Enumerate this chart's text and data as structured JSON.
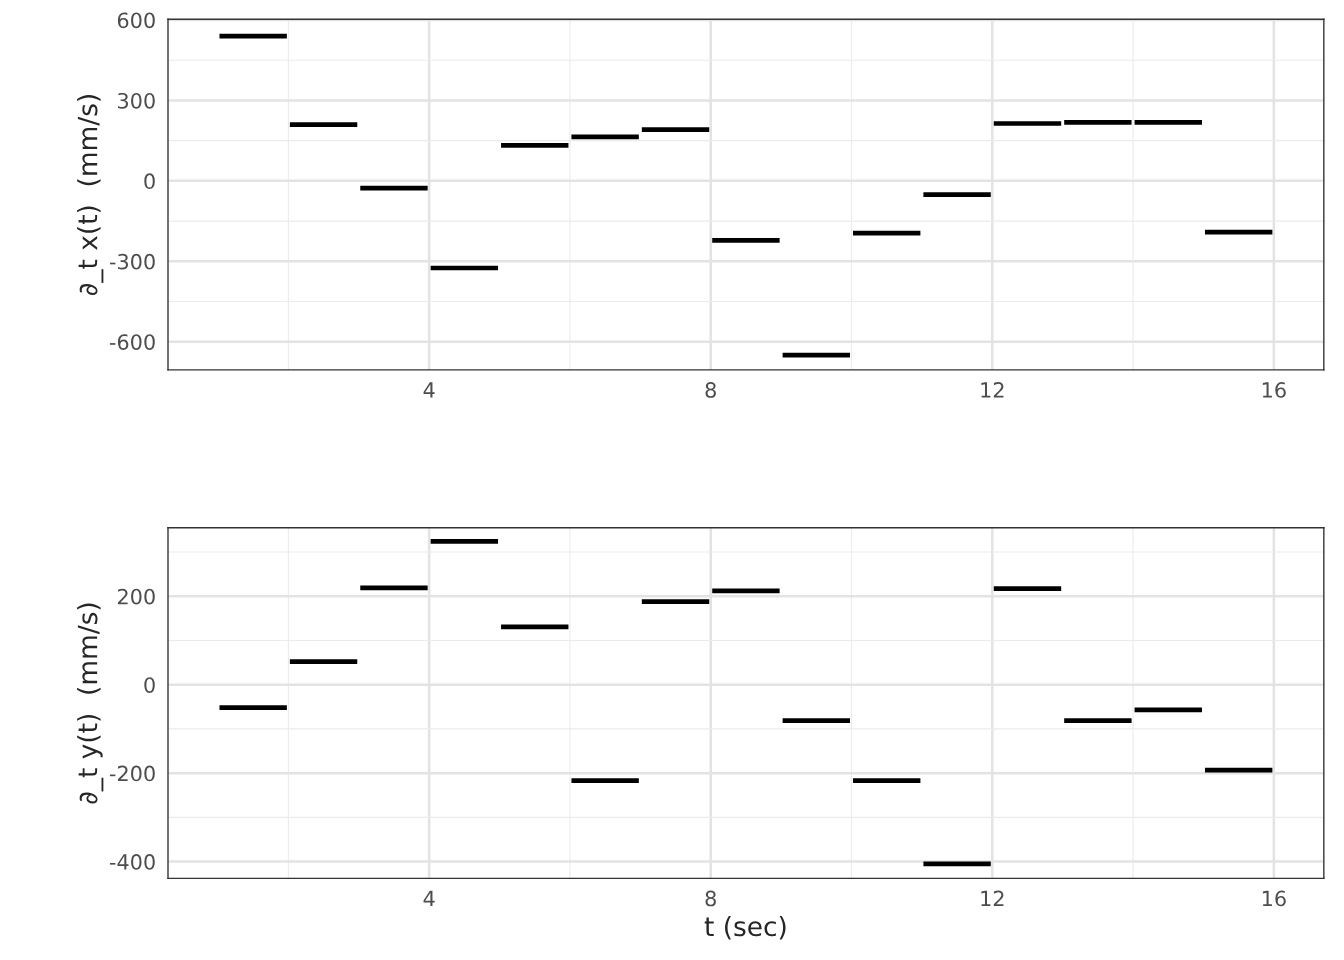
{
  "chart_data": [
    {
      "type": "line",
      "ylabel": "∂_t x(t)  (mm/s)",
      "xlim": [
        0.29,
        16.71
      ],
      "xticks": [
        4,
        8,
        12,
        16
      ],
      "ylim": [
        -705,
        603
      ],
      "yticks": [
        -600,
        -300,
        0,
        300,
        600
      ],
      "grid": true,
      "line_style": "solid",
      "marker": "none",
      "series": [
        {
          "color": "#000000",
          "x": [
            1,
            2
          ],
          "values": [
            540,
            540
          ]
        },
        {
          "color": "#000000",
          "x": [
            2,
            3
          ],
          "values": [
            210,
            210
          ]
        },
        {
          "color": "#000000",
          "x": [
            3,
            4
          ],
          "values": [
            -27,
            -27
          ]
        },
        {
          "color": "#000000",
          "x": [
            4,
            5
          ],
          "values": [
            -325,
            -325
          ]
        },
        {
          "color": "#000000",
          "x": [
            5,
            6
          ],
          "values": [
            132,
            132
          ]
        },
        {
          "color": "#000000",
          "x": [
            6,
            7
          ],
          "values": [
            164,
            164
          ]
        },
        {
          "color": "#000000",
          "x": [
            7,
            8
          ],
          "values": [
            191,
            191
          ]
        },
        {
          "color": "#000000",
          "x": [
            8,
            9
          ],
          "values": [
            -222,
            -222
          ]
        },
        {
          "color": "#000000",
          "x": [
            9,
            10
          ],
          "values": [
            -650,
            -650
          ]
        },
        {
          "color": "#000000",
          "x": [
            10,
            11
          ],
          "values": [
            -195,
            -195
          ]
        },
        {
          "color": "#000000",
          "x": [
            11,
            12
          ],
          "values": [
            -51,
            -51
          ]
        },
        {
          "color": "#000000",
          "x": [
            12,
            13
          ],
          "values": [
            214,
            214
          ]
        },
        {
          "color": "#000000",
          "x": [
            13,
            14
          ],
          "values": [
            218,
            218
          ]
        },
        {
          "color": "#000000",
          "x": [
            14,
            15
          ],
          "values": [
            218,
            218
          ]
        },
        {
          "color": "#000000",
          "x": [
            15,
            16
          ],
          "values": [
            -191,
            -191
          ]
        }
      ]
    },
    {
      "type": "line",
      "xlabel": "t (sec)",
      "ylabel": "∂_t y(t)  (mm/s)",
      "xlim": [
        0.29,
        16.71
      ],
      "xticks": [
        4,
        8,
        12,
        16
      ],
      "ylim": [
        -438,
        355
      ],
      "yticks": [
        -400,
        -200,
        0,
        200
      ],
      "grid": true,
      "line_style": "solid",
      "marker": "none",
      "series": [
        {
          "color": "#000000",
          "x": [
            1,
            2
          ],
          "values": [
            -52,
            -52
          ]
        },
        {
          "color": "#000000",
          "x": [
            2,
            3
          ],
          "values": [
            52,
            52
          ]
        },
        {
          "color": "#000000",
          "x": [
            3,
            4
          ],
          "values": [
            219,
            219
          ]
        },
        {
          "color": "#000000",
          "x": [
            4,
            5
          ],
          "values": [
            324,
            324
          ]
        },
        {
          "color": "#000000",
          "x": [
            5,
            6
          ],
          "values": [
            131,
            131
          ]
        },
        {
          "color": "#000000",
          "x": [
            6,
            7
          ],
          "values": [
            -217,
            -217
          ]
        },
        {
          "color": "#000000",
          "x": [
            7,
            8
          ],
          "values": [
            188,
            188
          ]
        },
        {
          "color": "#000000",
          "x": [
            8,
            9
          ],
          "values": [
            212,
            212
          ]
        },
        {
          "color": "#000000",
          "x": [
            9,
            10
          ],
          "values": [
            -81,
            -81
          ]
        },
        {
          "color": "#000000",
          "x": [
            10,
            11
          ],
          "values": [
            -217,
            -217
          ]
        },
        {
          "color": "#000000",
          "x": [
            11,
            12
          ],
          "values": [
            -405,
            -405
          ]
        },
        {
          "color": "#000000",
          "x": [
            12,
            13
          ],
          "values": [
            217,
            217
          ]
        },
        {
          "color": "#000000",
          "x": [
            13,
            14
          ],
          "values": [
            -81,
            -81
          ]
        },
        {
          "color": "#000000",
          "x": [
            14,
            15
          ],
          "values": [
            -57,
            -57
          ]
        },
        {
          "color": "#000000",
          "x": [
            15,
            16
          ],
          "values": [
            -193,
            -193
          ]
        }
      ]
    }
  ]
}
